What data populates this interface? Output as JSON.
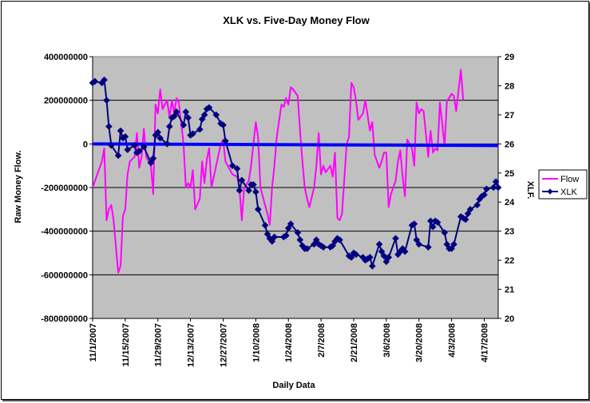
{
  "chart_data": {
    "type": "line",
    "title": "XLK vs. Five-Day Money Flow",
    "xlabel": "Daily Data",
    "ylabel_left": "Raw Money Flow.",
    "ylabel_right": "XLF.",
    "ylim_left": [
      -800000000,
      400000000
    ],
    "ylim_right": [
      20,
      29
    ],
    "yticks_left": [
      "400000000",
      "200000000",
      "0",
      "-200000000",
      "-400000000",
      "-600000000",
      "-800000000"
    ],
    "yticks_right": [
      "29",
      "28",
      "27",
      "26",
      "25",
      "24",
      "23",
      "22",
      "21",
      "20"
    ],
    "xtick_labels": [
      "11/1/2007",
      "11/15/2007",
      "11/29/2007",
      "12/13/2007",
      "12/27/2007",
      "1/10/2008",
      "1/24/2008",
      "2/7/2008",
      "2/21/2008",
      "3/6/2008",
      "3/20/2008",
      "4/3/2008",
      "4/17/2008"
    ],
    "x_start": "11/1/2007",
    "x_end": "4/23/2008",
    "grid": true,
    "plot_background": "#c0c0c0",
    "legend_position": "right",
    "zero_line_color": "#0000ff",
    "series": [
      {
        "name": "Flow",
        "color": "#ff00ff",
        "axis": "left",
        "marker": "none",
        "points": [
          [
            "11/1/2007",
            -200000000
          ],
          [
            "11/2/2007",
            -170000000
          ],
          [
            "11/3/2007",
            -140000000
          ],
          [
            "11/5/2007",
            -80000000
          ],
          [
            "11/6/2007",
            -20000000
          ],
          [
            "11/7/2007",
            -350000000
          ],
          [
            "11/8/2007",
            -300000000
          ],
          [
            "11/9/2007",
            -280000000
          ],
          [
            "11/10/2007",
            -350000000
          ],
          [
            "11/12/2007",
            -590000000
          ],
          [
            "11/13/2007",
            -560000000
          ],
          [
            "11/14/2007",
            -330000000
          ],
          [
            "11/15/2007",
            -300000000
          ],
          [
            "11/16/2007",
            -140000000
          ],
          [
            "11/17/2007",
            -80000000
          ],
          [
            "11/19/2007",
            -60000000
          ],
          [
            "11/20/2007",
            50000000
          ],
          [
            "11/21/2007",
            -110000000
          ],
          [
            "11/22/2007",
            -60000000
          ],
          [
            "11/23/2007",
            70000000
          ],
          [
            "11/24/2007",
            -60000000
          ],
          [
            "11/26/2007",
            -100000000
          ],
          [
            "11/27/2007",
            -230000000
          ],
          [
            "11/28/2007",
            180000000
          ],
          [
            "11/29/2007",
            140000000
          ],
          [
            "11/30/2007",
            250000000
          ],
          [
            "12/1/2007",
            160000000
          ],
          [
            "12/3/2007",
            200000000
          ],
          [
            "12/4/2007",
            120000000
          ],
          [
            "12/5/2007",
            200000000
          ],
          [
            "12/6/2007",
            140000000
          ],
          [
            "12/7/2007",
            210000000
          ],
          [
            "12/8/2007",
            190000000
          ],
          [
            "12/10/2007",
            0
          ],
          [
            "12/11/2007",
            -200000000
          ],
          [
            "12/12/2007",
            -180000000
          ],
          [
            "12/13/2007",
            -200000000
          ],
          [
            "12/14/2007",
            -120000000
          ],
          [
            "12/15/2007",
            -300000000
          ],
          [
            "12/17/2007",
            -250000000
          ],
          [
            "12/18/2007",
            -80000000
          ],
          [
            "12/19/2007",
            -180000000
          ],
          [
            "12/20/2007",
            -70000000
          ],
          [
            "12/21/2007",
            -20000000
          ],
          [
            "12/22/2007",
            -200000000
          ],
          [
            "12/24/2007",
            -100000000
          ],
          [
            "12/26/2007",
            0
          ],
          [
            "12/27/2007",
            20000000
          ],
          [
            "12/28/2007",
            -80000000
          ],
          [
            "12/29/2007",
            -100000000
          ],
          [
            "12/31/2007",
            -140000000
          ],
          [
            "1/2/2008",
            -150000000
          ],
          [
            "1/3/2008",
            -200000000
          ],
          [
            "1/4/2008",
            -350000000
          ],
          [
            "1/5/2008",
            -200000000
          ],
          [
            "1/7/2008",
            -170000000
          ],
          [
            "1/8/2008",
            -100000000
          ],
          [
            "1/9/2008",
            0
          ],
          [
            "1/10/2008",
            100000000
          ],
          [
            "1/11/2008",
            30000000
          ],
          [
            "1/12/2008",
            -200000000
          ],
          [
            "1/14/2008",
            -280000000
          ],
          [
            "1/15/2008",
            -320000000
          ],
          [
            "1/16/2008",
            -370000000
          ],
          [
            "1/17/2008",
            -200000000
          ],
          [
            "1/18/2008",
            -100000000
          ],
          [
            "1/19/2008",
            30000000
          ],
          [
            "1/21/2008",
            180000000
          ],
          [
            "1/22/2008",
            170000000
          ],
          [
            "1/23/2008",
            210000000
          ],
          [
            "1/24/2008",
            180000000
          ],
          [
            "1/25/2008",
            260000000
          ],
          [
            "1/26/2008",
            250000000
          ],
          [
            "1/28/2008",
            220000000
          ],
          [
            "1/29/2008",
            60000000
          ],
          [
            "1/30/2008",
            -80000000
          ],
          [
            "1/31/2008",
            -200000000
          ],
          [
            "2/1/2008",
            -250000000
          ],
          [
            "2/2/2008",
            -290000000
          ],
          [
            "2/4/2008",
            -200000000
          ],
          [
            "2/5/2008",
            -100000000
          ],
          [
            "2/6/2008",
            50000000
          ],
          [
            "2/7/2008",
            -140000000
          ],
          [
            "2/8/2008",
            -100000000
          ],
          [
            "2/9/2008",
            -130000000
          ],
          [
            "2/11/2008",
            -100000000
          ],
          [
            "2/12/2008",
            -150000000
          ],
          [
            "2/13/2008",
            -40000000
          ],
          [
            "2/14/2008",
            -340000000
          ],
          [
            "2/15/2008",
            -350000000
          ],
          [
            "2/16/2008",
            -320000000
          ],
          [
            "2/18/2008",
            0
          ],
          [
            "2/19/2008",
            30000000
          ],
          [
            "2/20/2008",
            280000000
          ],
          [
            "2/21/2008",
            260000000
          ],
          [
            "2/22/2008",
            200000000
          ],
          [
            "2/23/2008",
            110000000
          ],
          [
            "2/25/2008",
            140000000
          ],
          [
            "2/26/2008",
            200000000
          ],
          [
            "2/27/2008",
            130000000
          ],
          [
            "2/28/2008",
            60000000
          ],
          [
            "2/29/2008",
            100000000
          ],
          [
            "3/1/2008",
            -50000000
          ],
          [
            "3/3/2008",
            -110000000
          ],
          [
            "3/4/2008",
            -80000000
          ],
          [
            "3/5/2008",
            -40000000
          ],
          [
            "3/6/2008",
            -40000000
          ],
          [
            "3/7/2008",
            -290000000
          ],
          [
            "3/8/2008",
            -230000000
          ],
          [
            "3/10/2008",
            -170000000
          ],
          [
            "3/11/2008",
            -80000000
          ],
          [
            "3/12/2008",
            -30000000
          ],
          [
            "3/13/2008",
            -150000000
          ],
          [
            "3/14/2008",
            -240000000
          ],
          [
            "3/15/2008",
            20000000
          ],
          [
            "3/17/2008",
            -20000000
          ],
          [
            "3/18/2008",
            -100000000
          ],
          [
            "3/19/2008",
            190000000
          ],
          [
            "3/20/2008",
            140000000
          ],
          [
            "3/21/2008",
            160000000
          ],
          [
            "3/22/2008",
            150000000
          ],
          [
            "3/24/2008",
            -60000000
          ],
          [
            "3/25/2008",
            60000000
          ],
          [
            "3/26/2008",
            -40000000
          ],
          [
            "3/27/2008",
            -20000000
          ],
          [
            "3/28/2008",
            -30000000
          ],
          [
            "3/29/2008",
            190000000
          ],
          [
            "3/31/2008",
            -10000000
          ],
          [
            "4/1/2008",
            200000000
          ],
          [
            "4/2/2008",
            210000000
          ],
          [
            "4/3/2008",
            230000000
          ],
          [
            "4/4/2008",
            220000000
          ],
          [
            "4/5/2008",
            150000000
          ],
          [
            "4/7/2008",
            340000000
          ],
          [
            "4/8/2008",
            200000000
          ]
        ]
      },
      {
        "name": "XLK",
        "color": "#000080",
        "axis": "right",
        "marker": "diamond",
        "points": [
          [
            "11/1/2007",
            28.1
          ],
          [
            "11/2/2007",
            28.15
          ],
          [
            "11/5/2007",
            28.1
          ],
          [
            "11/6/2007",
            28.2
          ],
          [
            "11/7/2007",
            27.5
          ],
          [
            "11/8/2007",
            26.6
          ],
          [
            "11/9/2007",
            25.95
          ],
          [
            "11/12/2007",
            25.6
          ],
          [
            "11/13/2007",
            26.45
          ],
          [
            "11/14/2007",
            26.2
          ],
          [
            "11/15/2007",
            26.25
          ],
          [
            "11/16/2007",
            25.8
          ],
          [
            "11/19/2007",
            25.95
          ],
          [
            "11/20/2007",
            25.7
          ],
          [
            "11/21/2007",
            25.75
          ],
          [
            "11/23/2007",
            25.9
          ],
          [
            "11/26/2007",
            25.35
          ],
          [
            "11/27/2007",
            25.5
          ],
          [
            "11/28/2007",
            26.3
          ],
          [
            "11/29/2007",
            26.4
          ],
          [
            "11/30/2007",
            26.2
          ],
          [
            "12/3/2007",
            26.0
          ],
          [
            "12/4/2007",
            26.6
          ],
          [
            "12/5/2007",
            26.9
          ],
          [
            "12/6/2007",
            26.95
          ],
          [
            "12/7/2007",
            27.1
          ],
          [
            "12/10/2007",
            26.65
          ],
          [
            "12/11/2007",
            27.1
          ],
          [
            "12/12/2007",
            26.9
          ],
          [
            "12/13/2007",
            26.3
          ],
          [
            "12/14/2007",
            26.35
          ],
          [
            "12/17/2007",
            26.5
          ],
          [
            "12/18/2007",
            26.85
          ],
          [
            "12/19/2007",
            27.0
          ],
          [
            "12/20/2007",
            27.2
          ],
          [
            "12/21/2007",
            27.25
          ],
          [
            "12/24/2007",
            27.0
          ],
          [
            "12/26/2007",
            26.7
          ],
          [
            "12/27/2007",
            26.65
          ],
          [
            "12/28/2007",
            26.1
          ],
          [
            "12/31/2007",
            25.25
          ],
          [
            "1/2/2008",
            25.15
          ],
          [
            "1/3/2008",
            24.4
          ],
          [
            "1/4/2008",
            24.75
          ],
          [
            "1/7/2008",
            24.4
          ],
          [
            "1/8/2008",
            24.6
          ],
          [
            "1/9/2008",
            24.6
          ],
          [
            "1/10/2008",
            24.35
          ],
          [
            "1/11/2008",
            23.75
          ],
          [
            "1/14/2008",
            23.2
          ],
          [
            "1/15/2008",
            22.9
          ],
          [
            "1/16/2008",
            22.75
          ],
          [
            "1/17/2008",
            22.65
          ],
          [
            "1/18/2008",
            22.8
          ],
          [
            "1/22/2008",
            22.8
          ],
          [
            "1/23/2008",
            22.85
          ],
          [
            "1/24/2008",
            23.1
          ],
          [
            "1/25/2008",
            23.25
          ],
          [
            "1/28/2008",
            22.95
          ],
          [
            "1/29/2008",
            22.7
          ],
          [
            "1/30/2008",
            22.5
          ],
          [
            "1/31/2008",
            22.4
          ],
          [
            "2/1/2008",
            22.4
          ],
          [
            "2/4/2008",
            22.55
          ],
          [
            "2/5/2008",
            22.7
          ],
          [
            "2/6/2008",
            22.55
          ],
          [
            "2/7/2008",
            22.5
          ],
          [
            "2/8/2008",
            22.45
          ],
          [
            "2/11/2008",
            22.45
          ],
          [
            "2/12/2008",
            22.5
          ],
          [
            "2/13/2008",
            22.65
          ],
          [
            "2/14/2008",
            22.75
          ],
          [
            "2/15/2008",
            22.7
          ],
          [
            "2/19/2008",
            22.15
          ],
          [
            "2/20/2008",
            22.1
          ],
          [
            "2/21/2008",
            22.25
          ],
          [
            "2/22/2008",
            22.2
          ],
          [
            "2/25/2008",
            22.1
          ],
          [
            "2/26/2008",
            22.0
          ],
          [
            "2/27/2008",
            22.05
          ],
          [
            "2/28/2008",
            22.1
          ],
          [
            "2/29/2008",
            21.8
          ],
          [
            "3/3/2008",
            22.55
          ],
          [
            "3/4/2008",
            22.3
          ],
          [
            "3/5/2008",
            22.15
          ],
          [
            "3/6/2008",
            21.95
          ],
          [
            "3/7/2008",
            22.1
          ],
          [
            "3/10/2008",
            22.75
          ],
          [
            "3/11/2008",
            22.2
          ],
          [
            "3/12/2008",
            22.3
          ],
          [
            "3/13/2008",
            22.4
          ],
          [
            "3/14/2008",
            22.3
          ],
          [
            "3/17/2008",
            23.2
          ],
          [
            "3/18/2008",
            23.25
          ],
          [
            "3/19/2008",
            22.7
          ],
          [
            "3/20/2008",
            22.55
          ],
          [
            "3/24/2008",
            22.45
          ],
          [
            "3/25/2008",
            23.35
          ],
          [
            "3/26/2008",
            23.15
          ],
          [
            "3/27/2008",
            23.35
          ],
          [
            "3/28/2008",
            23.3
          ],
          [
            "3/31/2008",
            22.95
          ],
          [
            "4/1/2008",
            22.55
          ],
          [
            "4/2/2008",
            22.4
          ],
          [
            "4/3/2008",
            22.4
          ],
          [
            "4/4/2008",
            22.55
          ],
          [
            "4/7/2008",
            23.5
          ],
          [
            "4/8/2008",
            23.45
          ],
          [
            "4/9/2008",
            23.4
          ],
          [
            "4/10/2008",
            23.6
          ],
          [
            "4/11/2008",
            23.75
          ],
          [
            "4/14/2008",
            23.9
          ],
          [
            "4/15/2008",
            24.1
          ],
          [
            "4/16/2008",
            24.2
          ],
          [
            "4/17/2008",
            24.25
          ],
          [
            "4/18/2008",
            24.45
          ],
          [
            "4/21/2008",
            24.5
          ],
          [
            "4/22/2008",
            24.7
          ],
          [
            "4/23/2008",
            24.5
          ]
        ]
      }
    ]
  }
}
